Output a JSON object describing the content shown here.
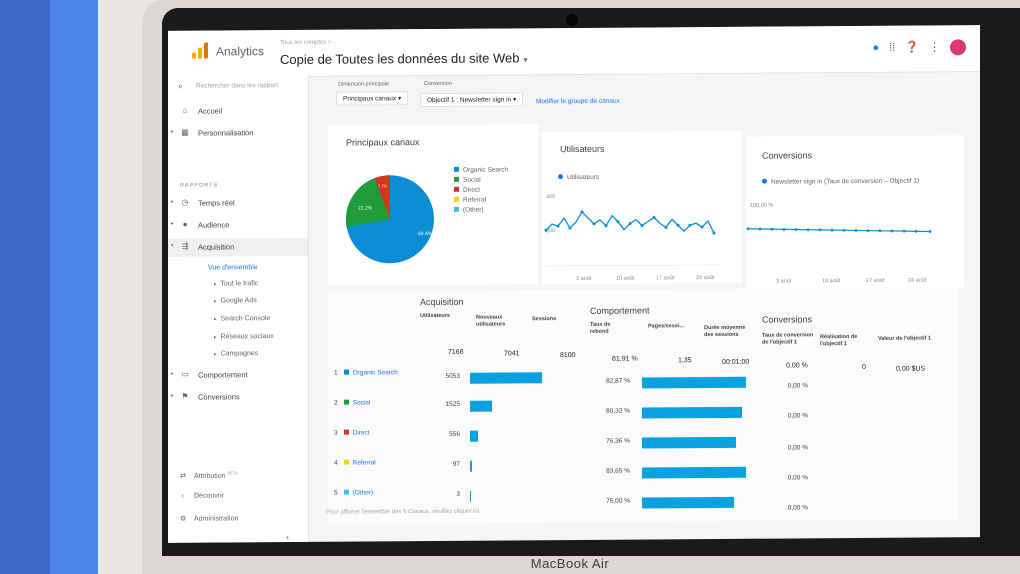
{
  "app": {
    "name": "Analytics",
    "breadcrumb": "Tous les comptes >",
    "view_title": "Copie de Toutes les données du site Web",
    "view_caret": "▾"
  },
  "topbar_icons": [
    "notifications-icon",
    "apps-icon",
    "help-icon",
    "more-icon",
    "avatar"
  ],
  "sidebar": {
    "search_placeholder": "Rechercher dans les rapport",
    "items": [
      {
        "label": "Accueil",
        "icon": "home-icon"
      },
      {
        "label": "Personnalisation",
        "icon": "dashboard-icon"
      },
      {
        "label": "Temps réel",
        "icon": "clock-icon"
      },
      {
        "label": "Audience",
        "icon": "person-icon"
      },
      {
        "label": "Acquisition",
        "icon": "acquisition-icon"
      },
      {
        "label": "Comportement",
        "icon": "window-icon"
      },
      {
        "label": "Conversions",
        "icon": "flag-icon"
      }
    ],
    "section_label": "RAPPORTS",
    "acquisition_sub": [
      "Vue d'ensemble",
      "Tout le trafic",
      "Google Ads",
      "Search Console",
      "Réseaux sociaux",
      "Campagnes"
    ],
    "bottom": [
      {
        "label": "Attribution",
        "badge": "BETA",
        "icon": "attribution-icon"
      },
      {
        "label": "Découvrir",
        "icon": "bulb-icon"
      },
      {
        "label": "Administration",
        "icon": "gear-icon"
      }
    ],
    "collapse": "‹"
  },
  "filters": {
    "primary_label": "Dimension principale",
    "primary_value": "Principaux canaux",
    "conversion_label": "Conversion",
    "conversion_value": "Objectif 1 : Newsletter sign in",
    "modify_link": "Modifier le groupe de canaux"
  },
  "colors": {
    "organic": "#0b8dd6",
    "social": "#1f9b3a",
    "direct": "#d93025",
    "referral": "#f9d20a",
    "other": "#34c6e3",
    "bar": "#0aa1e0"
  },
  "pie_card": {
    "title": "Principaux canaux",
    "legend": [
      "Organic Search",
      "Social",
      "Direct",
      "Referral",
      "(Other)"
    ],
    "labels": [
      "69.4%",
      "21.2%",
      "7.7%"
    ]
  },
  "users_card": {
    "title": "Utilisateurs",
    "legend": "Utilisateurs",
    "y_ticks": [
      "400",
      "200"
    ],
    "x_ticks": [
      "3 août",
      "10 août",
      "17 août",
      "24 août"
    ]
  },
  "conv_card": {
    "title": "Conversions",
    "legend": "Newsletter sign in (Taux de conversion – Objectif 1)",
    "y_tick": "100,00 %",
    "x_ticks": [
      "3 août",
      "10 août",
      "17 août",
      "24 août"
    ]
  },
  "table": {
    "group_acquisition": "Acquisition",
    "group_behavior": "Comportement",
    "group_conversions": "Conversions",
    "headers": [
      "Utilisateurs",
      "Nouveaux utilisateurs",
      "Sessions",
      "Taux de rebond",
      "Pages/sessi...",
      "Durée moyenne des sessions",
      "Taux de conversion de l'objectif 1",
      "Réalisation de l'objectif 1",
      "Valeur de l'objectif 1"
    ],
    "totals": [
      "7168",
      "7041",
      "8100",
      "81,91 %",
      "1,35",
      "00:01:00",
      "0,00 %",
      "0",
      "0,00 $US"
    ],
    "rows": [
      {
        "idx": "1",
        "channel": "Organic Search",
        "users": "5053",
        "bounce": "82,87 %",
        "conv": "0,00 %"
      },
      {
        "idx": "2",
        "channel": "Social",
        "users": "1525",
        "bounce": "80,32 %",
        "conv": "0,00 %"
      },
      {
        "idx": "3",
        "channel": "Direct",
        "users": "556",
        "bounce": "76,36 %",
        "conv": "0,00 %"
      },
      {
        "idx": "4",
        "channel": "Referral",
        "users": "97",
        "bounce": "83,65 %",
        "conv": "0,00 %"
      },
      {
        "idx": "5",
        "channel": "(Other)",
        "users": "3",
        "bounce": "75,00 %",
        "conv": "0,00 %"
      }
    ],
    "footnote": "Pour afficher l'ensemble des 5 Canaux, veuillez cliquer ici."
  },
  "device_label": "MacBook Air"
}
